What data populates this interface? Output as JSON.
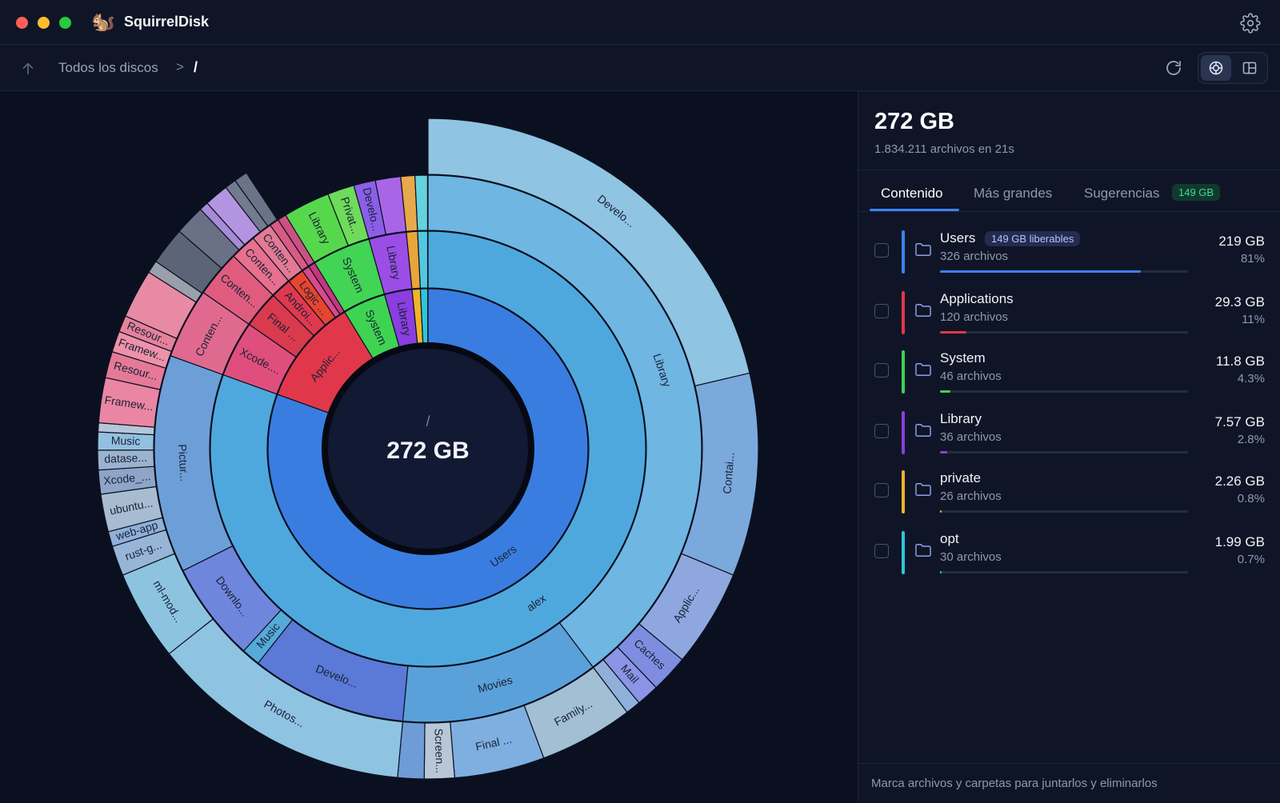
{
  "window": {
    "title": "SquirrelDisk",
    "logo": "🐿️"
  },
  "icons": {
    "settings": "gear-icon",
    "up": "arrow-up-icon",
    "refresh": "refresh-icon",
    "sunburst_view": "sunburst-icon",
    "treemap_view": "treemap-icon",
    "folder": "folder-icon"
  },
  "toolbar": {
    "breadcrumb_root": "Todos los discos",
    "separator": ">",
    "current": "/"
  },
  "colors": {
    "accent": "#3b82f6",
    "suggestion_green": "#3ddc97"
  },
  "chart_data": {
    "type": "sunburst",
    "center_label": "/",
    "center_value": "272 GB",
    "ring1": [
      {
        "label": "Users",
        "value": 219,
        "color": "#3a7de0"
      },
      {
        "label": "Applic...",
        "value": 29.3,
        "color": "#e0384a"
      },
      {
        "label": "System",
        "value": 11.8,
        "color": "#3fd352"
      },
      {
        "label": "Library",
        "value": 7.57,
        "color": "#8b3ee0"
      },
      {
        "label": "",
        "value": 2.26,
        "color": "#f0b429"
      },
      {
        "label": "",
        "value": 1.99,
        "color": "#2cc7d9"
      }
    ],
    "ring2": [
      {
        "label": "alex",
        "value": 219,
        "color": "#4fa8dd"
      },
      {
        "label": "Xcode....",
        "value": 11.3,
        "color": "#e04e7d"
      },
      {
        "label": "Final ...",
        "value": 7.5,
        "color": "#d93a4e"
      },
      {
        "label": "Androi...",
        "value": 4.2,
        "color": "#e0394f"
      },
      {
        "label": "Logic ...",
        "value": 3.4,
        "color": "#e8452f"
      },
      {
        "label": "",
        "value": 1.5,
        "color": "#d84a8a"
      },
      {
        "label": "",
        "value": 1.4,
        "color": "#c6367f"
      },
      {
        "label": "System",
        "value": 11.8,
        "color": "#42d454"
      },
      {
        "label": "Library",
        "value": 7.57,
        "color": "#9a4ee6"
      },
      {
        "label": "",
        "value": 2.26,
        "color": "#e8a53a"
      },
      {
        "label": "",
        "value": 1.99,
        "color": "#52c8e0"
      }
    ],
    "ring3": [
      {
        "label": "Library",
        "value": 108,
        "color": "#6fb6e2"
      },
      {
        "label": "Movies",
        "value": 32,
        "color": "#5aa1da"
      },
      {
        "label": "Develo...",
        "value": 25,
        "color": "#5b79d6"
      },
      {
        "label": "Music",
        "value": 3,
        "color": "#55aad8"
      },
      {
        "label": "Downlo...",
        "value": 16,
        "color": "#6f86dd"
      },
      {
        "label": "Pictur...",
        "value": 35,
        "color": "#6c9fd8"
      },
      {
        "label": "Conten...",
        "value": 11.3,
        "color": "#e06a8f"
      },
      {
        "label": "Conten...",
        "value": 7.5,
        "color": "#e05c7f"
      },
      {
        "label": "Conten...",
        "value": 4.2,
        "color": "#e6708e"
      },
      {
        "label": "Conten...",
        "value": 3.4,
        "color": "#e27a96"
      },
      {
        "label": "",
        "value": 1.5,
        "color": "#d95a82"
      },
      {
        "label": "",
        "value": 1.4,
        "color": "#cc5183"
      },
      {
        "label": "Library",
        "value": 7.5,
        "color": "#57d84c"
      },
      {
        "label": "Privat...",
        "value": 4.3,
        "color": "#6edb5a"
      },
      {
        "label": "Develo...",
        "value": 3.5,
        "color": "#8b5ee8"
      },
      {
        "label": "",
        "value": 4.07,
        "color": "#a866e6"
      },
      {
        "label": "",
        "value": 2.26,
        "color": "#e8a94a"
      },
      {
        "label": "",
        "value": 1.99,
        "color": "#64d3dd"
      }
    ],
    "ring4": [
      {
        "label": "Develo...",
        "value": 58,
        "color": "#8fc4e2"
      },
      {
        "label": "Contai...",
        "value": 27,
        "color": "#7ba9dc"
      },
      {
        "label": "Applic...",
        "value": 13,
        "color": "#8ea8df"
      },
      {
        "label": "Caches",
        "value": 5,
        "color": "#7f8de0"
      },
      {
        "label": "Mail",
        "value": 3,
        "color": "#8a95e6"
      },
      {
        "label": "",
        "value": 2,
        "color": "#90b0dc"
      },
      {
        "label": "Family...",
        "value": 12.5,
        "color": "#a2bfd4"
      },
      {
        "label": "Final ...",
        "value": 12,
        "color": "#7eafe0"
      },
      {
        "label": "Screen...",
        "value": 4,
        "color": "#b8c7d8"
      },
      {
        "label": "",
        "value": 3.5,
        "color": "#6f9cd6"
      },
      {
        "label": "Photos...",
        "value": 35,
        "color": "#8ec3e2"
      },
      {
        "label": "ml-mod...",
        "value": 12,
        "color": "#8cc4e0"
      },
      {
        "label": "rust-g...",
        "value": 4,
        "color": "#97b5d6"
      },
      {
        "label": "web-app",
        "value": 2,
        "color": "#8fb0d9"
      },
      {
        "label": "ubuntu...",
        "value": 5,
        "color": "#a7bcd0"
      },
      {
        "label": "Xcode_...",
        "value": 3.2,
        "color": "#8ea5c8"
      },
      {
        "label": "datase...",
        "value": 2.6,
        "color": "#9ab3cf"
      },
      {
        "label": "Music",
        "value": 2.4,
        "color": "#93c0e0"
      },
      {
        "label": "",
        "value": 1.2,
        "color": "#b4c6d8"
      },
      {
        "label": "Framew...",
        "value": 6,
        "color": "#ea86a3"
      },
      {
        "label": "Resour...",
        "value": 3.5,
        "color": "#e57a98"
      },
      {
        "label": "Framew...",
        "value": 2.8,
        "color": "#ee91aa"
      },
      {
        "label": "Resour...",
        "value": 2.2,
        "color": "#e6819c"
      },
      {
        "label": "",
        "value": 6.5,
        "color": "#e98aa4"
      },
      {
        "label": "",
        "value": 1.7,
        "color": "#9aa0ab"
      },
      {
        "label": "",
        "value": 5,
        "color": "#5c6478"
      },
      {
        "label": "",
        "value": 4,
        "color": "#6a7186"
      },
      {
        "label": "",
        "value": 1.2,
        "color": "#a78bd6"
      },
      {
        "label": "",
        "value": 3.2,
        "color": "#b394e0"
      },
      {
        "label": "",
        "value": 1.5,
        "color": "#737b90"
      },
      {
        "label": "",
        "value": 1.8,
        "color": "#6b7388"
      }
    ],
    "ring2_rot_labels": {
      "Framew...": true,
      "Comman...": true
    }
  },
  "panel": {
    "total": "272 GB",
    "subtitle": "1.834.211 archivos en 21s",
    "tabs": [
      {
        "label": "Contenido"
      },
      {
        "label": "Más grandes"
      },
      {
        "label": "Sugerencias"
      }
    ],
    "suggestions_badge": "149 GB",
    "rows": [
      {
        "name": "Users",
        "badge": "149 GB liberables",
        "count": "326 archivos",
        "size": "219 GB",
        "pct": "81%",
        "fraction": 0.81,
        "color": "#3b82f6"
      },
      {
        "name": "Applications",
        "badge": "",
        "count": "120 archivos",
        "size": "29.3 GB",
        "pct": "11%",
        "fraction": 0.108,
        "color": "#e0384a"
      },
      {
        "name": "System",
        "badge": "",
        "count": "46 archivos",
        "size": "11.8 GB",
        "pct": "4.3%",
        "fraction": 0.043,
        "color": "#3fd352"
      },
      {
        "name": "Library",
        "badge": "",
        "count": "36 archivos",
        "size": "7.57 GB",
        "pct": "2.8%",
        "fraction": 0.028,
        "color": "#8b3ee0"
      },
      {
        "name": "private",
        "badge": "",
        "count": "26 archivos",
        "size": "2.26 GB",
        "pct": "0.8%",
        "fraction": 0.008,
        "color": "#f0b429"
      },
      {
        "name": "opt",
        "badge": "",
        "count": "30 archivos",
        "size": "1.99 GB",
        "pct": "0.7%",
        "fraction": 0.007,
        "color": "#2cc7d9"
      }
    ],
    "footer": "Marca archivos y carpetas para juntarlos y eliminarlos"
  }
}
